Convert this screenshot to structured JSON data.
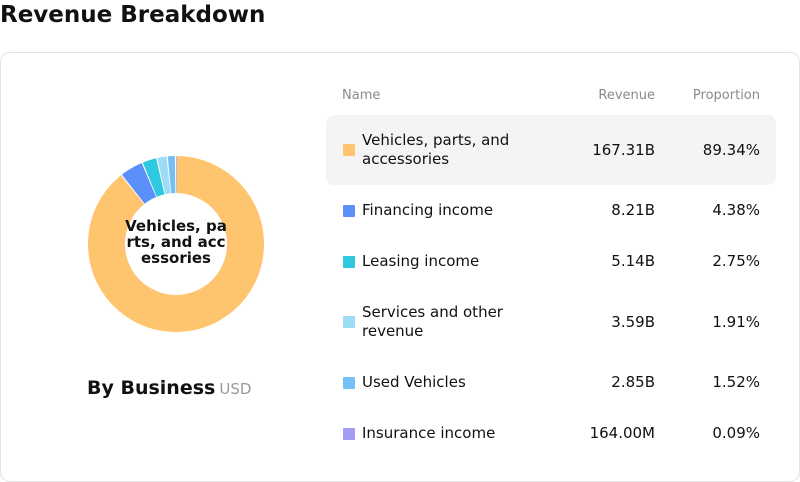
{
  "page": {
    "title": "Revenue Breakdown",
    "chart_caption": "By Business",
    "unit": "USD",
    "center_label": "Vehicles, parts, and accessories"
  },
  "table": {
    "headers": {
      "name": "Name",
      "revenue": "Revenue",
      "proportion": "Proportion"
    },
    "rows": [
      {
        "name": "Vehicles, parts, and accessories",
        "revenue": "167.31B",
        "proportion": "89.34%",
        "color": "#ffc56e"
      },
      {
        "name": "Financing income",
        "revenue": "8.21B",
        "proportion": "4.38%",
        "color": "#5b8ff9"
      },
      {
        "name": "Leasing income",
        "revenue": "5.14B",
        "proportion": "2.75%",
        "color": "#2ec8e0"
      },
      {
        "name": "Services and other revenue",
        "revenue": "3.59B",
        "proportion": "1.91%",
        "color": "#9cdcf5"
      },
      {
        "name": "Used Vehicles",
        "revenue": "2.85B",
        "proportion": "1.52%",
        "color": "#74c0f5"
      },
      {
        "name": "Insurance income",
        "revenue": "164.00M",
        "proportion": "0.09%",
        "color": "#a39cf5"
      }
    ]
  },
  "chart_data": {
    "type": "pie",
    "title": "Revenue Breakdown",
    "subtitle": "By Business",
    "unit": "USD",
    "categories": [
      "Vehicles, parts, and accessories",
      "Financing income",
      "Leasing income",
      "Services and other revenue",
      "Used Vehicles",
      "Insurance income"
    ],
    "values": [
      89.34,
      4.38,
      2.75,
      1.91,
      1.52,
      0.09
    ],
    "revenue": [
      "167.31B",
      "8.21B",
      "5.14B",
      "3.59B",
      "2.85B",
      "164.00M"
    ],
    "colors": [
      "#ffc56e",
      "#5b8ff9",
      "#2ec8e0",
      "#9cdcf5",
      "#74c0f5",
      "#a39cf5"
    ],
    "legend": "right"
  }
}
